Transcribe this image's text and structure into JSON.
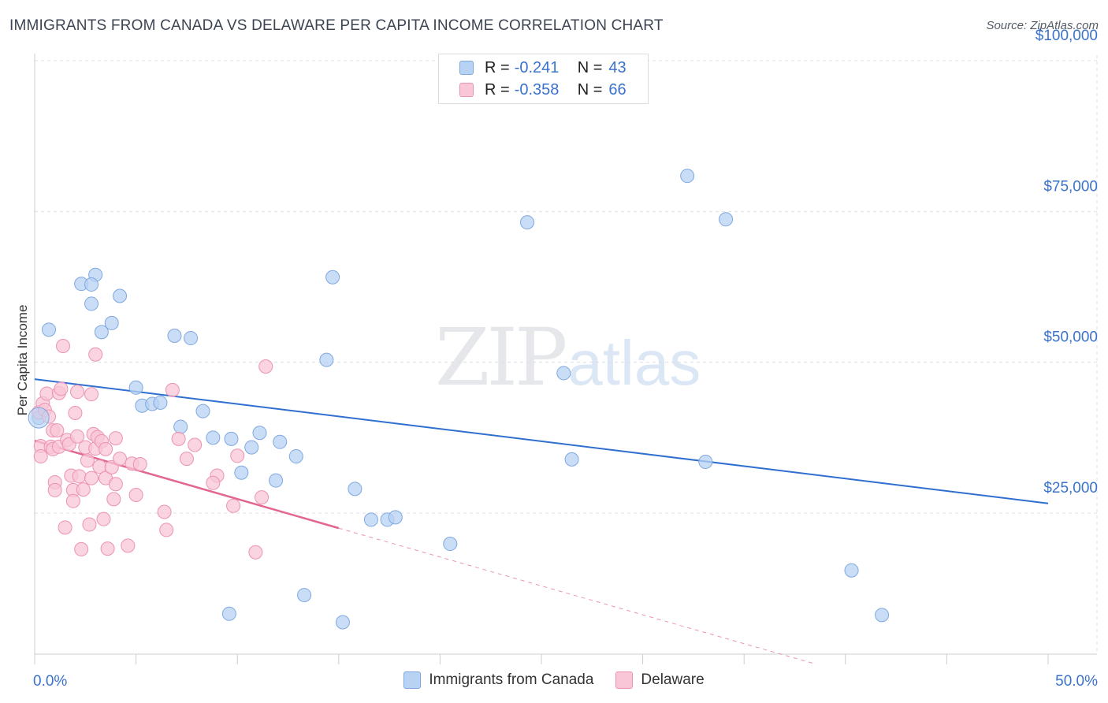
{
  "header": {
    "title": "IMMIGRANTS FROM CANADA VS DELAWARE PER CAPITA INCOME CORRELATION CHART",
    "source": "Source: ZipAtlas.com"
  },
  "watermark": {
    "zip": "ZIP",
    "atlas": "atlas"
  },
  "legend_top": [
    {
      "r_label": "R =",
      "r_value": "-0.241",
      "n_label": "N =",
      "n_value": "43"
    },
    {
      "r_label": "R =",
      "r_value": "-0.358",
      "n_label": "N =",
      "n_value": "66"
    }
  ],
  "colors": {
    "blue_fill": "#b8d2f3",
    "blue_stroke": "#7fa8e0",
    "blue_line": "#2f6fd0",
    "pink_fill": "#f8c6d6",
    "pink_stroke": "#ec93b2",
    "pink_line": "#e2668f",
    "grid": "#dcdfe4",
    "axis_text": "#3a72cc"
  },
  "chart_data": {
    "type": "scatter",
    "title": "IMMIGRANTS FROM CANADA VS DELAWARE PER CAPITA INCOME CORRELATION CHART",
    "xlabel": "",
    "ylabel": "Per Capita Income",
    "xlim": [
      0,
      50
    ],
    "ylim": [
      0,
      105000
    ],
    "x_tick_labels": [
      "0.0%",
      "50.0%"
    ],
    "y_ticks": [
      25000,
      50000,
      75000,
      100000
    ],
    "y_tick_labels": [
      "$25,000",
      "$50,000",
      "$75,000",
      "$100,000"
    ],
    "grid": true,
    "legend_position": "bottom",
    "series": [
      {
        "name": "Immigrants from Canada",
        "r": -0.241,
        "n": 43,
        "trend": [
          [
            0,
            47200
          ],
          [
            50,
            26600
          ]
        ],
        "points": [
          [
            0.2,
            40800
          ],
          [
            0.7,
            55400
          ],
          [
            2.3,
            63000
          ],
          [
            3.0,
            64500
          ],
          [
            2.8,
            62900
          ],
          [
            2.8,
            59700
          ],
          [
            3.3,
            55000
          ],
          [
            3.8,
            56500
          ],
          [
            4.2,
            61000
          ],
          [
            5.0,
            45800
          ],
          [
            5.3,
            42800
          ],
          [
            5.8,
            43100
          ],
          [
            6.2,
            43300
          ],
          [
            6.9,
            54400
          ],
          [
            7.2,
            39300
          ],
          [
            7.7,
            54000
          ],
          [
            8.3,
            41900
          ],
          [
            8.8,
            37500
          ],
          [
            9.7,
            37300
          ],
          [
            9.6,
            8300
          ],
          [
            10.2,
            31700
          ],
          [
            10.7,
            35900
          ],
          [
            11.1,
            38300
          ],
          [
            11.9,
            30400
          ],
          [
            12.1,
            36800
          ],
          [
            12.9,
            34400
          ],
          [
            13.3,
            11400
          ],
          [
            14.4,
            50400
          ],
          [
            14.7,
            64100
          ],
          [
            15.2,
            6900
          ],
          [
            15.8,
            29000
          ],
          [
            16.6,
            23900
          ],
          [
            17.4,
            23900
          ],
          [
            17.8,
            24300
          ],
          [
            20.5,
            19900
          ],
          [
            24.3,
            73200
          ],
          [
            26.1,
            48200
          ],
          [
            26.5,
            33900
          ],
          [
            32.2,
            80900
          ],
          [
            33.1,
            33500
          ],
          [
            34.1,
            73700
          ],
          [
            40.3,
            15500
          ],
          [
            41.8,
            8100
          ]
        ]
      },
      {
        "name": "Delaware",
        "r": -0.358,
        "n": 66,
        "trend": [
          [
            0,
            37000
          ],
          [
            15,
            22500
          ]
        ],
        "trend_dashed_to": [
          [
            15,
            22500
          ],
          [
            38.5,
            0
          ]
        ],
        "points": [
          [
            0.2,
            41700
          ],
          [
            0.3,
            36100
          ],
          [
            0.3,
            34400
          ],
          [
            0.4,
            43200
          ],
          [
            0.5,
            42100
          ],
          [
            0.6,
            44800
          ],
          [
            0.7,
            41000
          ],
          [
            0.8,
            36000
          ],
          [
            0.9,
            35600
          ],
          [
            0.9,
            38700
          ],
          [
            1.0,
            30100
          ],
          [
            1.0,
            28800
          ],
          [
            1.1,
            38700
          ],
          [
            1.2,
            36000
          ],
          [
            1.2,
            44900
          ],
          [
            1.3,
            45600
          ],
          [
            1.4,
            52700
          ],
          [
            1.6,
            37100
          ],
          [
            1.7,
            36400
          ],
          [
            1.5,
            22600
          ],
          [
            1.8,
            31200
          ],
          [
            1.9,
            28800
          ],
          [
            1.9,
            27000
          ],
          [
            2.0,
            41600
          ],
          [
            2.1,
            45100
          ],
          [
            2.1,
            37700
          ],
          [
            2.2,
            31100
          ],
          [
            2.4,
            28900
          ],
          [
            2.3,
            19000
          ],
          [
            2.5,
            35900
          ],
          [
            2.6,
            33700
          ],
          [
            2.7,
            23100
          ],
          [
            2.8,
            30800
          ],
          [
            2.8,
            44700
          ],
          [
            2.9,
            38100
          ],
          [
            3.0,
            35700
          ],
          [
            3.0,
            51300
          ],
          [
            3.1,
            37600
          ],
          [
            3.3,
            36900
          ],
          [
            3.2,
            32700
          ],
          [
            3.4,
            24000
          ],
          [
            3.5,
            30800
          ],
          [
            3.6,
            19100
          ],
          [
            3.5,
            35600
          ],
          [
            3.8,
            32600
          ],
          [
            3.9,
            27300
          ],
          [
            4.0,
            37400
          ],
          [
            4.0,
            29800
          ],
          [
            4.2,
            34000
          ],
          [
            4.6,
            19600
          ],
          [
            4.8,
            33200
          ],
          [
            5.0,
            28000
          ],
          [
            5.2,
            33100
          ],
          [
            6.5,
            22200
          ],
          [
            6.4,
            25200
          ],
          [
            6.8,
            45400
          ],
          [
            7.1,
            37300
          ],
          [
            7.5,
            34000
          ],
          [
            9.0,
            31200
          ],
          [
            9.8,
            26200
          ],
          [
            10.0,
            34500
          ],
          [
            10.9,
            18500
          ],
          [
            11.2,
            27600
          ],
          [
            11.4,
            49300
          ],
          [
            7.9,
            36300
          ],
          [
            8.8,
            30000
          ]
        ]
      }
    ]
  }
}
